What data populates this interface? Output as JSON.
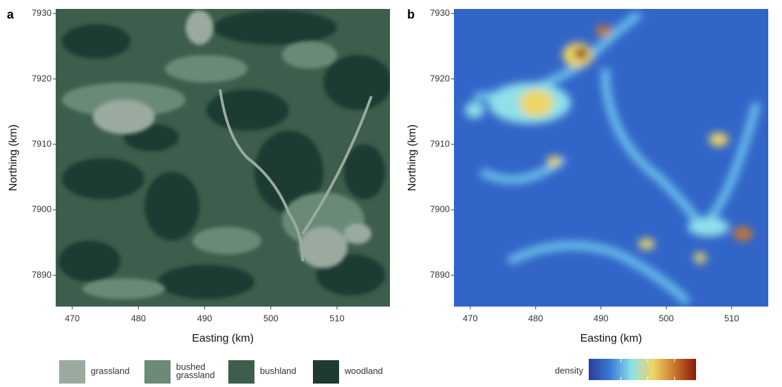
{
  "chart_data": [
    {
      "type": "raster",
      "panel_label": "a",
      "xlabel": "Easting (km)",
      "ylabel": "Northing (km)",
      "xlim": [
        467.5,
        518
      ],
      "xticks": [
        470,
        480,
        490,
        500,
        510
      ],
      "ylim": [
        7885.2,
        7930.7
      ],
      "yticks": [
        7890,
        7900,
        7910,
        7920,
        7930
      ],
      "series": [
        {
          "name": "grassland",
          "color": "#9aaa9f"
        },
        {
          "name": "bushed grassland",
          "color": "#6b8a78"
        },
        {
          "name": "bushland",
          "color": "#3d5e4c"
        },
        {
          "name": "woodland",
          "color": "#1e3a31"
        }
      ]
    },
    {
      "type": "heatmap",
      "panel_label": "b",
      "xlabel": "Easting (km)",
      "ylabel": "Northing (km)",
      "xlim": [
        467.5,
        515.6
      ],
      "xticks": [
        470,
        480,
        490,
        500,
        510
      ],
      "ylim": [
        7885.2,
        7930.7
      ],
      "yticks": [
        7890,
        7900,
        7910,
        7920,
        7930
      ],
      "colorbar_title": "density",
      "colors": [
        "#2a3c98",
        "#3a7ad6",
        "#8fe0ea",
        "#eed566",
        "#c9762e",
        "#8a1a0a"
      ]
    }
  ]
}
